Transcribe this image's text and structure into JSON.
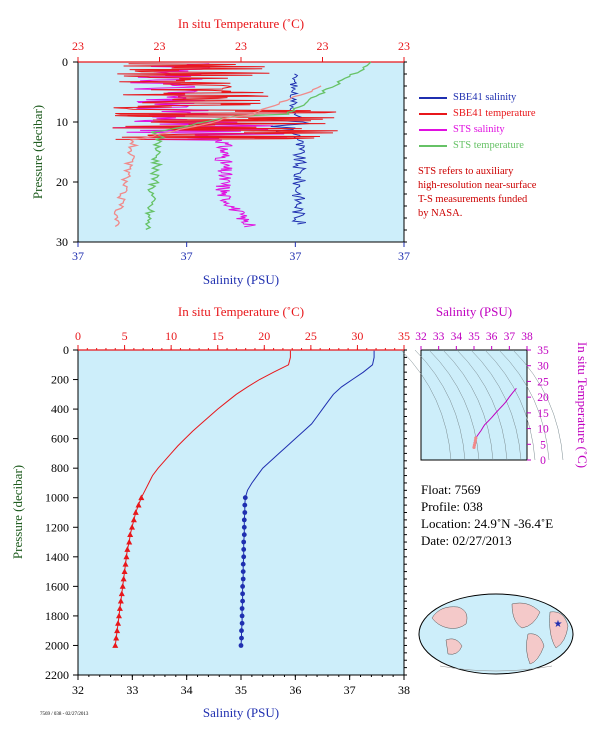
{
  "colors": {
    "plot_bg": "#cdeefa",
    "salinity": "#1f2fb0",
    "temperature": "#e8171b",
    "sts_salinity": "#e010e0",
    "sts_temperature": "#66c266",
    "sbe_temp_top": "#f08a8a",
    "axis_label_green": "#1c5a1c",
    "ts_magenta": "#c000c0"
  },
  "top_panel": {
    "top_axis_label": "In situ Temperature (˚C)",
    "bottom_axis_label": "Salinity (PSU)",
    "left_axis_label": "Pressure (decibar)",
    "top_ticks": [
      "23",
      "23",
      "23",
      "23",
      "23"
    ],
    "bottom_ticks": [
      "37",
      "37",
      "37",
      "37"
    ],
    "left_ticks": [
      "0",
      "10",
      "20",
      "30"
    ]
  },
  "legend": [
    {
      "label": "SBE41 salinity",
      "color": "#1f2fb0"
    },
    {
      "label": "SBE41 temperature",
      "color": "#e8171b"
    },
    {
      "label": "STS salinity",
      "color": "#e010e0"
    },
    {
      "label": "STS temperature",
      "color": "#66c266"
    }
  ],
  "note_lines": [
    "STS refers to auxiliary",
    "high-resolution near-surface",
    "T-S measurements funded",
    "by NASA."
  ],
  "bottom_panel": {
    "top_axis_label": "In situ Temperature (˚C)",
    "bottom_axis_label": "Salinity (PSU)",
    "left_axis_label": "Pressure (decibar)",
    "top_ticks": [
      "0",
      "5",
      "10",
      "15",
      "20",
      "25",
      "30",
      "35"
    ],
    "bottom_ticks": [
      "32",
      "33",
      "34",
      "35",
      "36",
      "37",
      "38"
    ],
    "left_ticks": [
      "0",
      "200",
      "400",
      "600",
      "800",
      "1000",
      "1200",
      "1400",
      "1600",
      "1800",
      "2000",
      "2200"
    ]
  },
  "ts_panel": {
    "top_axis_label": "Salinity (PSU)",
    "right_axis_label": "In situ Temperature (˚C)",
    "top_ticks": [
      "32",
      "33",
      "34",
      "35",
      "36",
      "37",
      "38"
    ],
    "right_ticks": [
      "35",
      "30",
      "25",
      "20",
      "15",
      "10",
      "5",
      "0"
    ]
  },
  "info": {
    "float": "Float:  7569",
    "profile": "Profile:  038",
    "location": "Location:  24.9˚N  -36.4˚E",
    "date": "Date:  02/27/2013"
  },
  "footer_tiny": "7569 / 038 - 02/27/2013",
  "chart_data": [
    {
      "type": "line",
      "title": "",
      "xlabel": "Salinity (PSU)",
      "x2label": "In situ Temperature (˚C)",
      "ylabel": "Pressure (decibar)",
      "ylim": [
        2200,
        0
      ],
      "xlim": [
        32,
        38
      ],
      "x2lim": [
        0,
        35
      ],
      "series": [
        {
          "name": "SBE41 salinity",
          "pressure": [
            5,
            50,
            100,
            150,
            200,
            250,
            300,
            350,
            400,
            450,
            500,
            550,
            600,
            650,
            700,
            750,
            800,
            850,
            900,
            950,
            1000
          ],
          "values": [
            37.45,
            37.45,
            37.42,
            37.25,
            37.05,
            36.85,
            36.7,
            36.6,
            36.5,
            36.4,
            36.3,
            36.15,
            36.0,
            35.85,
            35.7,
            35.55,
            35.4,
            35.3,
            35.2,
            35.12,
            35.08
          ]
        },
        {
          "name": "SBE41 salinity (discrete)",
          "pressure": [
            1000,
            1050,
            1100,
            1150,
            1200,
            1250,
            1300,
            1350,
            1400,
            1450,
            1500,
            1550,
            1600,
            1650,
            1700,
            1750,
            1800,
            1850,
            1900,
            1950,
            2000
          ],
          "values": [
            35.08,
            35.07,
            35.07,
            35.06,
            35.06,
            35.06,
            35.05,
            35.05,
            35.05,
            35.04,
            35.04,
            35.04,
            35.03,
            35.03,
            35.03,
            35.02,
            35.02,
            35.02,
            35.01,
            35.01,
            35.0
          ]
        },
        {
          "name": "SBE41 temperature",
          "pressure": [
            5,
            50,
            100,
            150,
            200,
            250,
            300,
            350,
            400,
            450,
            500,
            550,
            600,
            650,
            700,
            750,
            800,
            850,
            900,
            950,
            1000
          ],
          "values": [
            22.8,
            22.8,
            22.6,
            21.0,
            19.5,
            18.2,
            17.0,
            16.0,
            15.0,
            14.1,
            13.2,
            12.3,
            11.5,
            10.7,
            10.0,
            9.3,
            8.6,
            8.0,
            7.6,
            7.2,
            6.8
          ]
        },
        {
          "name": "SBE41 temperature (discrete)",
          "pressure": [
            1000,
            1050,
            1100,
            1150,
            1200,
            1250,
            1300,
            1350,
            1400,
            1450,
            1500,
            1550,
            1600,
            1650,
            1700,
            1750,
            1800,
            1850,
            1900,
            1950,
            2000
          ],
          "values": [
            6.8,
            6.5,
            6.2,
            6.0,
            5.8,
            5.6,
            5.5,
            5.3,
            5.2,
            5.1,
            5.0,
            4.9,
            4.8,
            4.7,
            4.6,
            4.5,
            4.4,
            4.3,
            4.2,
            4.1,
            4.0
          ]
        }
      ]
    },
    {
      "type": "scatter",
      "title": "",
      "xlabel": "Salinity (PSU)",
      "ylabel": "In situ Temperature (˚C)",
      "xlim": [
        32,
        38
      ],
      "ylim": [
        0,
        35
      ],
      "series": [
        {
          "name": "T-S profile",
          "x": [
            37.4,
            37.2,
            37.0,
            36.8,
            36.6,
            36.4,
            36.2,
            36.0,
            35.8,
            35.6,
            35.5,
            35.4,
            35.3,
            35.2,
            35.1,
            35.08,
            35.05,
            35.02,
            35.0
          ],
          "y": [
            22.8,
            21.5,
            20.0,
            18.5,
            17.2,
            16.0,
            14.8,
            13.5,
            12.3,
            11.2,
            10.3,
            9.4,
            8.6,
            7.8,
            7.0,
            6.2,
            5.4,
            4.7,
            4.0
          ]
        }
      ]
    }
  ]
}
